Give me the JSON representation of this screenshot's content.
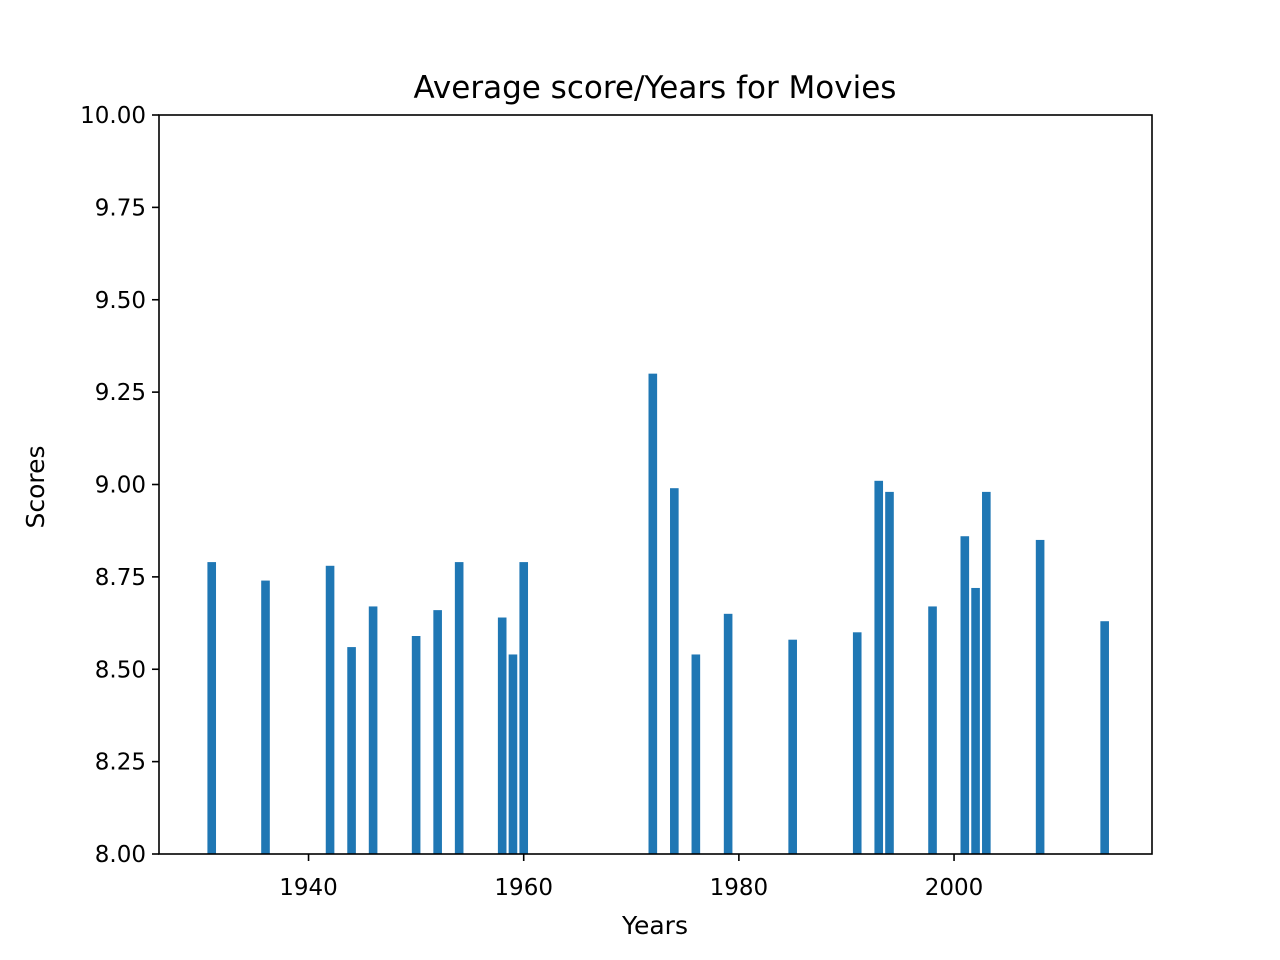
{
  "chart_data": {
    "type": "bar",
    "title": "Average score/Years for Movies",
    "xlabel": "Years",
    "ylabel": "Scores",
    "xlim": [
      1926.1,
      2018.4
    ],
    "ylim": [
      8.0,
      10.0
    ],
    "xticks": [
      1940,
      1960,
      1980,
      2000
    ],
    "yticks": [
      "8.00",
      "8.25",
      "8.50",
      "8.75",
      "9.00",
      "9.25",
      "9.50",
      "9.75",
      "10.00"
    ],
    "grid": false,
    "bar_color": "#1f77b4",
    "bar_width_years": 0.8,
    "series": [
      {
        "x": [
          1931,
          1936,
          1942,
          1944,
          1946,
          1950,
          1952,
          1954,
          1958,
          1959,
          1960,
          1972,
          1974,
          1976,
          1979,
          1985,
          1991,
          1993,
          1994,
          1998,
          2001,
          2002,
          2003,
          2008,
          2014
        ],
        "values": [
          8.79,
          8.74,
          8.78,
          8.56,
          8.67,
          8.59,
          8.66,
          8.79,
          8.64,
          8.54,
          8.79,
          9.3,
          8.99,
          8.54,
          8.65,
          8.58,
          8.6,
          9.01,
          8.98,
          8.67,
          8.86,
          8.72,
          8.98,
          8.85,
          8.63
        ]
      }
    ]
  }
}
